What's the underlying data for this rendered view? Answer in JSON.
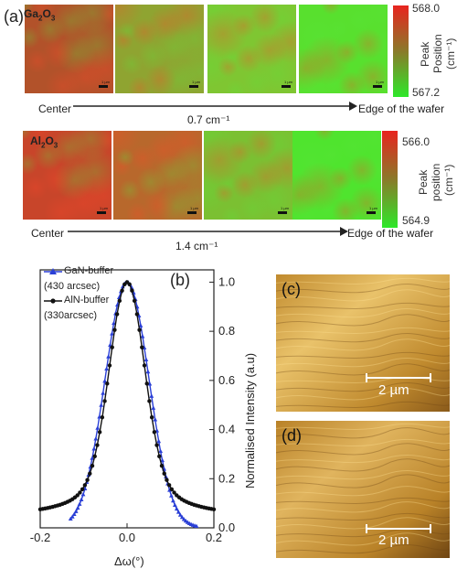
{
  "figure": {
    "panel_a_label": "(a)",
    "panel_b_label": "(b)",
    "panel_c_label": "(c)",
    "panel_d_label": "(d)"
  },
  "ga2o3": {
    "label_main": "Ga",
    "label_sub1": "2",
    "label_mid": "O",
    "label_sub2": "3",
    "colorbar": {
      "max": "568.0",
      "min": "567.2",
      "title_line1": "Peak",
      "title_line2": "Position",
      "unit": "(cm⁻¹)",
      "top_color": "#e8241f",
      "mid_color": "#8a7a2a",
      "bottom_color": "#2ee82a"
    },
    "center_label": "Center",
    "edge_label": "Edge of the wafer",
    "shift_label": "0.7 cm⁻¹",
    "map_scale_text": "1 µm",
    "map_colors": [
      "#b2522a",
      "#8fa431",
      "#7fc632",
      "#58e02e"
    ]
  },
  "al2o3": {
    "label_main": "Al",
    "label_sub1": "2",
    "label_mid": "O",
    "label_sub2": "3",
    "colorbar": {
      "max": "566.0",
      "min": "564.9",
      "title_line1": "Peak",
      "title_line2": "position",
      "unit": "(cm⁻¹)",
      "top_color": "#e8241f",
      "mid_color": "#8a7a2a",
      "bottom_color": "#2ee82a"
    },
    "center_label": "Center",
    "edge_label": "Edge of the wafer",
    "shift_label": "1.4 cm⁻¹",
    "map_scale_text": "1 µm",
    "map_colors": [
      "#c8452a",
      "#b8682c",
      "#7bc032",
      "#4fe42e"
    ]
  },
  "chart_data": {
    "type": "scatter",
    "xlabel": "Δω(°)",
    "ylabel": "Normalised Intensity (a.u)",
    "xlim": [
      -0.2,
      0.2
    ],
    "ylim": [
      0.0,
      1.05
    ],
    "x_ticks": [
      "-0.2",
      "0.0",
      "0.2"
    ],
    "y_ticks": [
      "0.0",
      "0.2",
      "0.4",
      "0.6",
      "0.8",
      "1.0"
    ],
    "legend_placement": "top-left",
    "series": [
      {
        "name": "GaN-buffer",
        "note": "(430 arcsec)",
        "color": "#2a3fd6",
        "marker": "triangle",
        "fwhm_deg": 0.119,
        "x_from": -0.13,
        "x_to": 0.16
      },
      {
        "name": "AlN-buffer",
        "note": "(330arcsec)",
        "color": "#111111",
        "marker": "circle",
        "fwhm_deg": 0.092,
        "x_from": -0.2,
        "x_to": 0.2
      }
    ]
  },
  "afm_c": {
    "scale_text": "2 µm",
    "base_color": "#c08a2e",
    "light_color": "#e9c26a",
    "dark_color": "#8a5a1a"
  },
  "afm_d": {
    "scale_text": "2 µm",
    "base_color": "#b98228",
    "light_color": "#e0b45e",
    "dark_color": "#6e4412"
  }
}
